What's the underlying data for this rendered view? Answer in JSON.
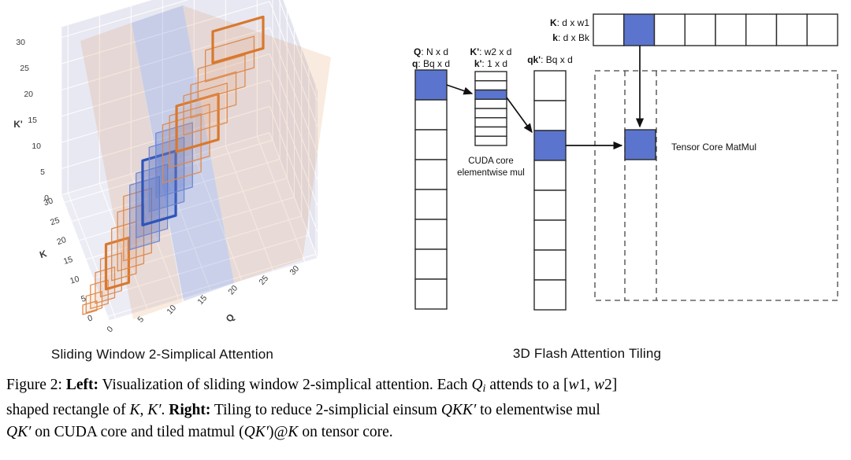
{
  "left_panel": {
    "title": "Sliding Window 2-Simplical Attention"
  },
  "right_panel": {
    "title": "3D Flash Attention Tiling",
    "labels": {
      "q_top": {
        "b": "Q",
        "r": ": N x d"
      },
      "q_bot": {
        "b": "q",
        "r": ": Bq x d"
      },
      "kp_top": {
        "b": "K'",
        "r": ": w2 x d"
      },
      "kp_bot": {
        "b": "k'",
        "r": ": 1 x d"
      },
      "qk": {
        "b": "qk'",
        "r": ": Bq x d"
      },
      "k_top": {
        "b": "K",
        "r": ": d x w1"
      },
      "k_bot": {
        "b": "k",
        "r": ": d x Bk"
      },
      "cuda1": "CUDA core",
      "cuda2": "elementwise mul",
      "tensor": "Tensor Core MatMul"
    },
    "tiles": {
      "q_column": {
        "cells": 8,
        "highlight_index": 0
      },
      "kprime_column": {
        "cells": 8,
        "highlight_index": 2
      },
      "qk_column": {
        "cells": 8,
        "highlight_index": 2
      },
      "k_row": {
        "cells": 8,
        "highlight_index": 1
      },
      "highlight_color": "#5b75ce",
      "stroke_color": "#2b2b2b"
    }
  },
  "caption": {
    "lines": [
      [
        {
          "t": "Figure 2: ",
          "s": "plain"
        },
        {
          "t": "Left:",
          "s": "bold"
        },
        {
          "t": " Visualization of sliding window 2-simplical attention. Each ",
          "s": "plain"
        },
        {
          "t": "Q",
          "s": "math"
        },
        {
          "t": "i",
          "s": "sub"
        },
        {
          "t": " attends to a [",
          "s": "plain"
        },
        {
          "t": "w",
          "s": "math"
        },
        {
          "t": "1, ",
          "s": "plain"
        },
        {
          "t": "w",
          "s": "math"
        },
        {
          "t": "2]",
          "s": "plain"
        }
      ],
      [
        {
          "t": "shaped rectangle of ",
          "s": "plain"
        },
        {
          "t": "K",
          "s": "math"
        },
        {
          "t": ", ",
          "s": "plain"
        },
        {
          "t": "K′",
          "s": "math"
        },
        {
          "t": ". ",
          "s": "plain"
        },
        {
          "t": "Right:",
          "s": "bold"
        },
        {
          "t": " Tiling to reduce 2-simplicial einsum ",
          "s": "plain"
        },
        {
          "t": "QKK′",
          "s": "math"
        },
        {
          "t": " to elementwise mul",
          "s": "plain"
        }
      ],
      [
        {
          "t": "QK′",
          "s": "math"
        },
        {
          "t": " on CUDA core and tiled matmul (",
          "s": "plain"
        },
        {
          "t": "QK′",
          "s": "math"
        },
        {
          "t": ")@",
          "s": "plain"
        },
        {
          "t": "K",
          "s": "math"
        },
        {
          "t": " on tensor core.",
          "s": "plain"
        }
      ]
    ]
  },
  "chart_data": {
    "type": "scatter",
    "subtype": "3d-sliding-window-wireframe",
    "title": "Sliding Window 2-Simplical Attention",
    "axes": {
      "q": {
        "label": "Q",
        "ticks": [
          0,
          5,
          10,
          15,
          20,
          25,
          30
        ],
        "range": [
          0,
          30
        ]
      },
      "k": {
        "label": "K",
        "ticks": [
          0,
          5,
          10,
          15,
          20,
          25,
          30
        ],
        "range": [
          0,
          30
        ]
      },
      "kprime": {
        "label": "K'",
        "ticks": [
          0,
          5,
          10,
          15,
          20,
          25,
          30
        ],
        "range": [
          0,
          30
        ]
      }
    },
    "grid": true,
    "legend_position": "none",
    "windows": {
      "count": 22,
      "orange_bold_indices": [
        5,
        16,
        21
      ],
      "blue_indices": [
        9,
        10,
        11,
        12,
        13
      ],
      "blue_bold_index": 11
    },
    "colors": {
      "orange": "#d9782d",
      "orange_thin": "#dd8a4d",
      "blue_bold": "#2e54b8",
      "blue_thin": "#6c87d0",
      "wall_left": "#e8e8f2",
      "wall_right": "#e4e4ef",
      "floor": "#ececf5",
      "grid": "#ffffff",
      "plane_orange": "rgba(215,124,50,0.15)",
      "plane_blue": "rgba(84,110,190,0.22)",
      "tick_text": "#3a3a3a"
    }
  }
}
